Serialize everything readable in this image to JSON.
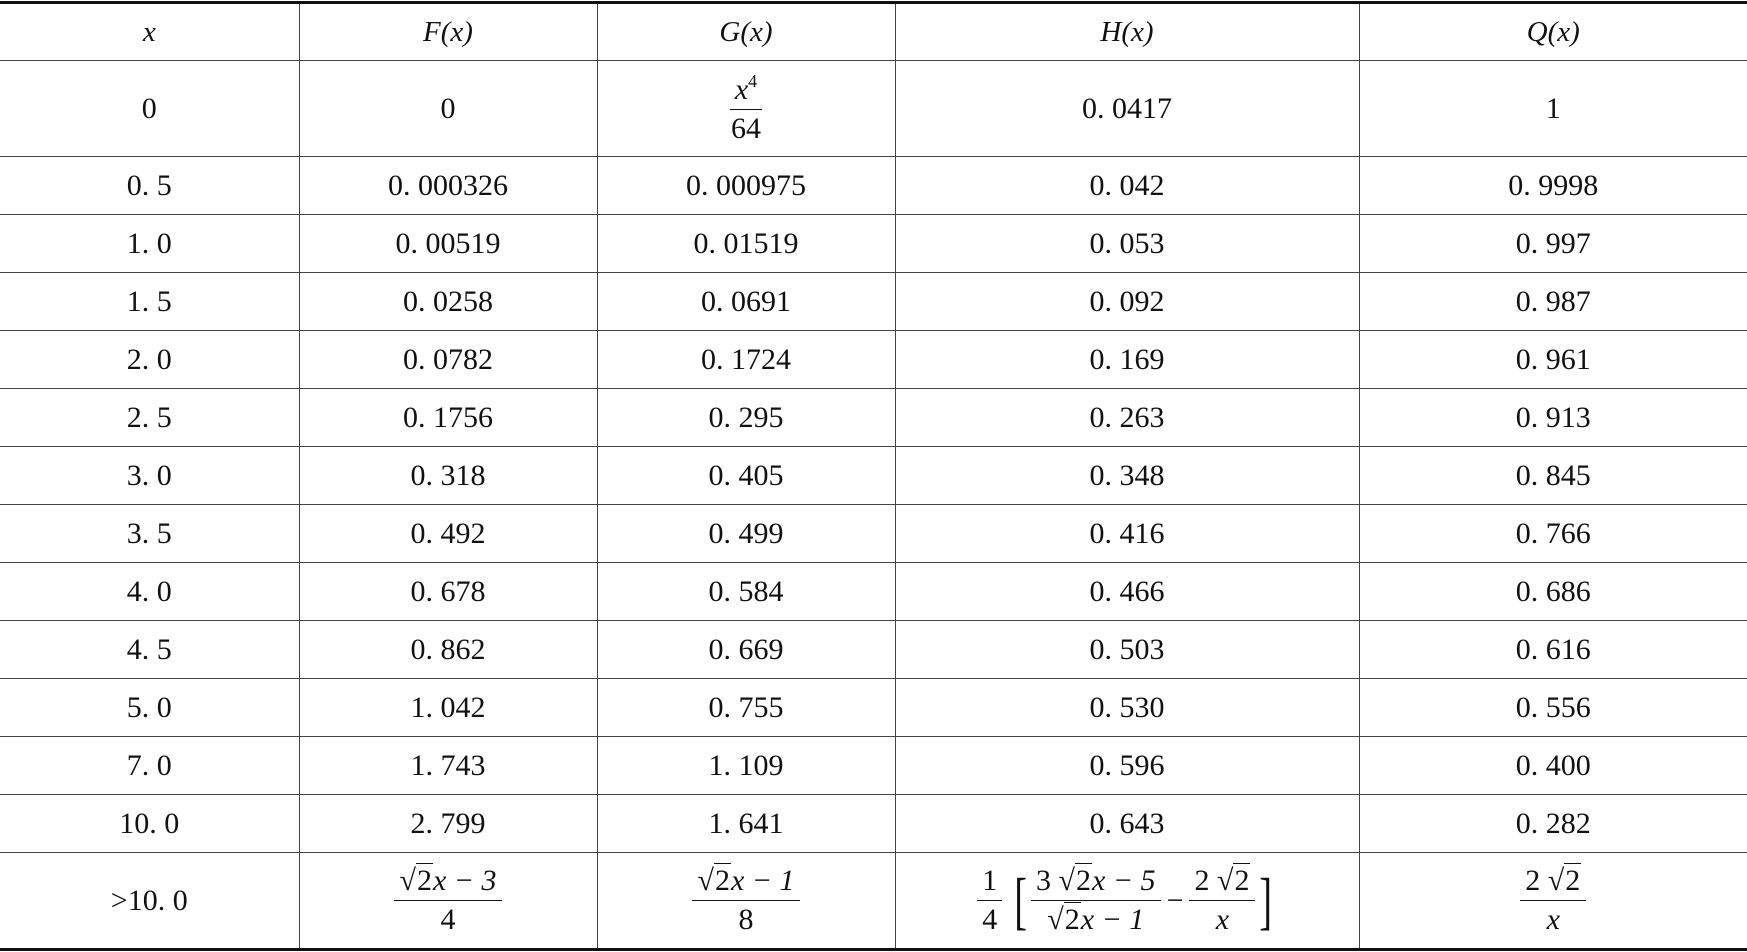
{
  "table": {
    "header": [
      "x",
      "F(x)",
      "G(x)",
      "H(x)",
      "Q(x)"
    ],
    "rows": [
      [
        "0",
        "0",
        {
          "num": "x",
          "sup": "4",
          "den": "64"
        },
        "0. 0417",
        "1"
      ],
      [
        "0. 5",
        "0. 000326",
        "0. 000975",
        "0. 042",
        "0. 9998"
      ],
      [
        "1. 0",
        "0. 00519",
        "0. 01519",
        "0. 053",
        "0. 997"
      ],
      [
        "1. 5",
        "0. 0258",
        "0. 0691",
        "0. 092",
        "0. 987"
      ],
      [
        "2. 0",
        "0. 0782",
        "0. 1724",
        "0. 169",
        "0. 961"
      ],
      [
        "2. 5",
        "0. 1756",
        "0. 295",
        "0. 263",
        "0. 913"
      ],
      [
        "3. 0",
        "0. 318",
        "0. 405",
        "0. 348",
        "0. 845"
      ],
      [
        "3. 5",
        "0. 492",
        "0. 499",
        "0. 416",
        "0. 766"
      ],
      [
        "4. 0",
        "0. 678",
        "0. 584",
        "0. 466",
        "0. 686"
      ],
      [
        "4. 5",
        "0. 862",
        "0. 669",
        "0. 503",
        "0. 616"
      ],
      [
        "5. 0",
        "1. 042",
        "0. 755",
        "0. 530",
        "0. 556"
      ],
      [
        "7. 0",
        "1. 743",
        "1. 109",
        "0. 596",
        "0. 400"
      ],
      [
        "10. 0",
        "2. 799",
        "1. 641",
        "0. 643",
        "0. 282"
      ],
      [
        ">10. 0",
        {
          "num_root": "2",
          "num_rest": "x − 3",
          "den": "4"
        },
        {
          "num_root": "2",
          "num_rest": "x − 1",
          "den": "8"
        },
        {
          "coef_num": "1",
          "coef_den": "4",
          "a_num_pre": "3",
          "a_num_root": "2",
          "a_num_rest": "x − 5",
          "a_den_root": "2",
          "a_den_rest": "x − 1",
          "minus": "−",
          "b_num_pre": "2",
          "b_num_root": "2",
          "b_den": "x"
        },
        {
          "num_pre": "2",
          "num_root": "2",
          "den": "x"
        }
      ]
    ]
  }
}
